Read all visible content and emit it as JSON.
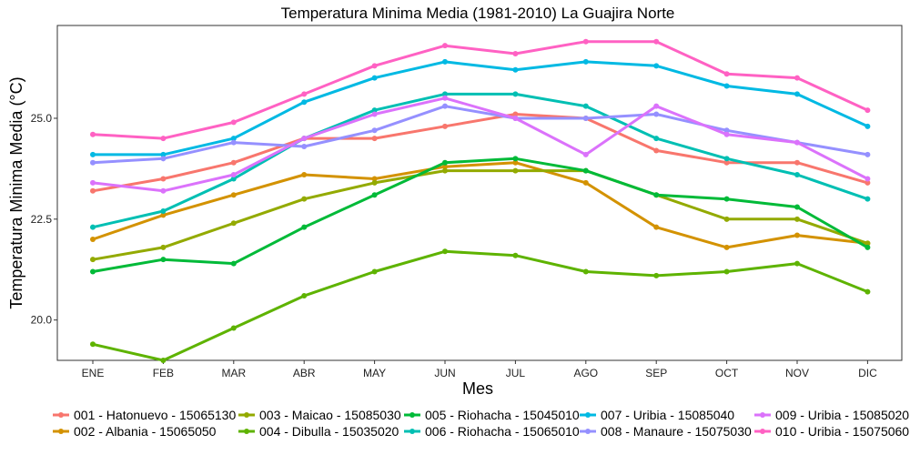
{
  "chart_data": {
    "type": "line",
    "title": "Temperatura Minima Media (1981-2010)  La Guajira Norte",
    "xlabel": "Mes",
    "ylabel": "Temperatura Minima Media  (°C)",
    "categories": [
      "ENE",
      "FEB",
      "MAR",
      "ABR",
      "MAY",
      "JUN",
      "JUL",
      "AGO",
      "SEP",
      "OCT",
      "NOV",
      "DIC"
    ],
    "ylim": [
      19.0,
      27.3
    ],
    "yticks": [
      20.0,
      22.5,
      25.0
    ],
    "ytick_labels": [
      "20.0",
      "22.5",
      "25.0"
    ],
    "grid": false,
    "legend_position": "bottom",
    "series": [
      {
        "name": "001 - Hatonuevo - 15065130",
        "color": "#F8766D",
        "values": [
          23.2,
          23.5,
          23.9,
          24.5,
          24.5,
          24.8,
          25.1,
          25.0,
          24.2,
          23.9,
          23.9,
          23.4
        ]
      },
      {
        "name": "002 - Albania - 15065050",
        "color": "#D39200",
        "values": [
          22.0,
          22.6,
          23.1,
          23.6,
          23.5,
          23.8,
          23.9,
          23.4,
          22.3,
          21.8,
          22.1,
          21.9
        ]
      },
      {
        "name": "003 - Maicao - 15085030",
        "color": "#93AA00",
        "values": [
          21.5,
          21.8,
          22.4,
          23.0,
          23.4,
          23.7,
          23.7,
          23.7,
          23.1,
          22.5,
          22.5,
          21.9
        ]
      },
      {
        "name": "004 - Dibulla - 15035020",
        "color": "#5EB300",
        "values": [
          19.4,
          19.0,
          19.8,
          20.6,
          21.2,
          21.7,
          21.6,
          21.2,
          21.1,
          21.2,
          21.4,
          20.7
        ]
      },
      {
        "name": "005 - Riohacha - 15045010",
        "color": "#00BA38",
        "values": [
          21.2,
          21.5,
          21.4,
          22.3,
          23.1,
          23.9,
          24.0,
          23.7,
          23.1,
          23.0,
          22.8,
          21.8
        ]
      },
      {
        "name": "006 - Riohacha - 15065010",
        "color": "#00BFB3",
        "values": [
          22.3,
          22.7,
          23.5,
          24.5,
          25.2,
          25.6,
          25.6,
          25.3,
          24.5,
          24.0,
          23.6,
          23.0
        ]
      },
      {
        "name": "007 - Uribia - 15085040",
        "color": "#00B9E3",
        "values": [
          24.1,
          24.1,
          24.5,
          25.4,
          26.0,
          26.4,
          26.2,
          26.4,
          26.3,
          25.8,
          25.6,
          24.8
        ]
      },
      {
        "name": "008 - Manaure - 15075030",
        "color": "#9590FF",
        "values": [
          23.9,
          24.0,
          24.4,
          24.3,
          24.7,
          25.3,
          25.0,
          25.0,
          25.1,
          24.7,
          24.4,
          24.1
        ]
      },
      {
        "name": "009 - Uribia - 15085020",
        "color": "#DB72FB",
        "values": [
          23.4,
          23.2,
          23.6,
          24.5,
          25.1,
          25.5,
          25.0,
          24.1,
          25.3,
          24.6,
          24.4,
          23.5
        ]
      },
      {
        "name": "010 - Uribia - 15075060",
        "color": "#FF61C3",
        "values": [
          24.6,
          24.5,
          24.9,
          25.6,
          26.3,
          26.8,
          26.6,
          26.9,
          26.9,
          26.1,
          26.0,
          25.2
        ]
      }
    ]
  }
}
